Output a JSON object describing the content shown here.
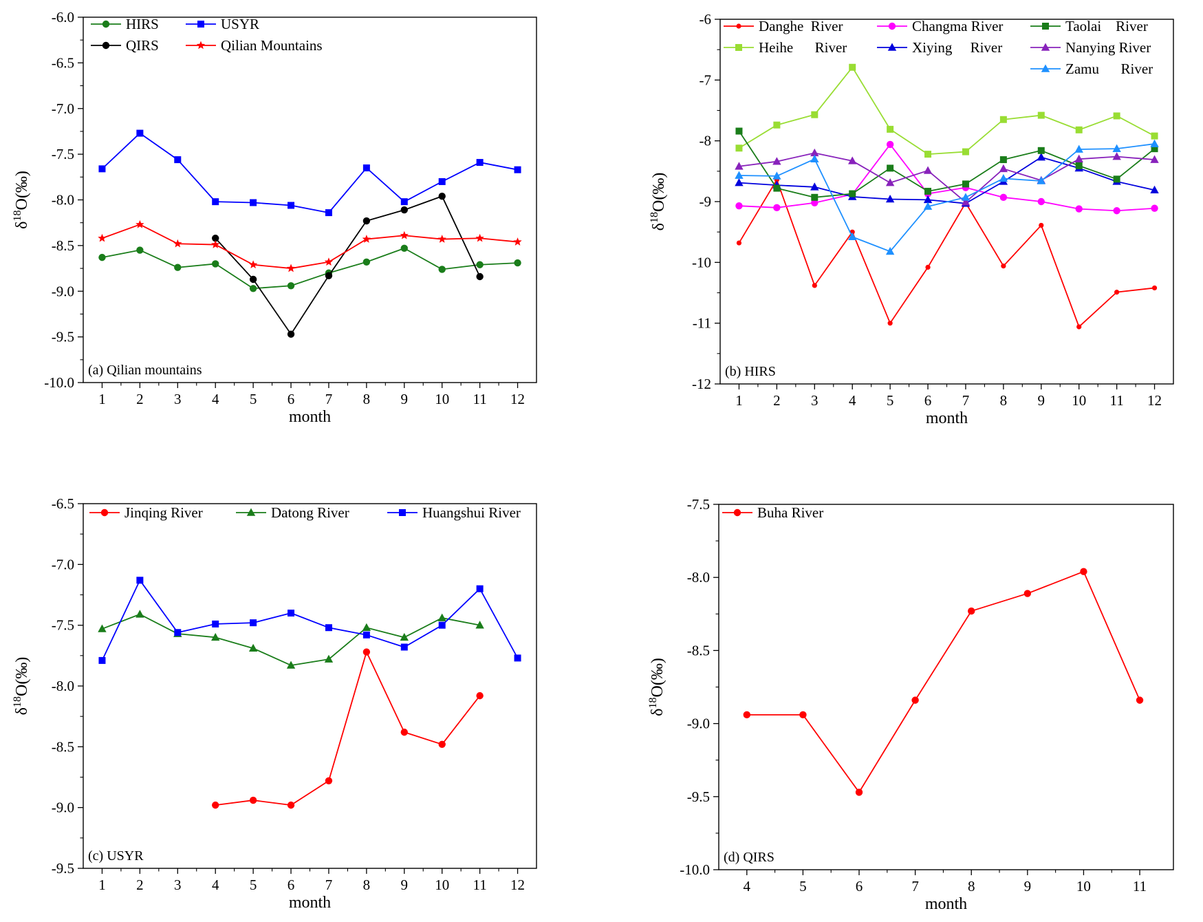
{
  "figure": {
    "panels": [
      "a",
      "b",
      "c",
      "d"
    ]
  },
  "chart_data": [
    {
      "id": "a",
      "type": "line",
      "panel_label": "(a) Qilian mountains",
      "xlabel": "month",
      "ylabel": "δ18O(‰)",
      "xlim": [
        0.5,
        12.5
      ],
      "ylim": [
        -10.0,
        -6.0
      ],
      "xticks": [
        1,
        2,
        3,
        4,
        5,
        6,
        7,
        8,
        9,
        10,
        11,
        12
      ],
      "yticks": [
        -10.0,
        -9.5,
        -9.0,
        -8.5,
        -8.0,
        -7.5,
        -7.0,
        -6.5,
        -6.0
      ],
      "ytick_decimals": 1,
      "legend_columns": 2,
      "series": [
        {
          "name": "HIRS",
          "color": "#1a7d1a",
          "marker": "circle",
          "points": [
            [
              1,
              -8.63
            ],
            [
              2,
              -8.55
            ],
            [
              3,
              -8.74
            ],
            [
              4,
              -8.7
            ],
            [
              5,
              -8.97
            ],
            [
              6,
              -8.94
            ],
            [
              7,
              -8.8
            ],
            [
              8,
              -8.68
            ],
            [
              9,
              -8.53
            ],
            [
              10,
              -8.76
            ],
            [
              11,
              -8.71
            ],
            [
              12,
              -8.69
            ]
          ]
        },
        {
          "name": "USYR",
          "color": "#0000ff",
          "marker": "square",
          "points": [
            [
              1,
              -7.66
            ],
            [
              2,
              -7.27
            ],
            [
              3,
              -7.56
            ],
            [
              4,
              -8.02
            ],
            [
              5,
              -8.03
            ],
            [
              6,
              -8.06
            ],
            [
              7,
              -8.14
            ],
            [
              8,
              -7.65
            ],
            [
              9,
              -8.02
            ],
            [
              10,
              -7.8
            ],
            [
              11,
              -7.59
            ],
            [
              12,
              -7.67
            ]
          ]
        },
        {
          "name": "QIRS",
          "color": "#000000",
          "marker": "circle",
          "points": [
            [
              4,
              -8.42
            ],
            [
              5,
              -8.87
            ],
            [
              6,
              -9.47
            ],
            [
              7,
              -8.83
            ],
            [
              8,
              -8.23
            ],
            [
              9,
              -8.11
            ],
            [
              10,
              -7.96
            ],
            [
              11,
              -8.84
            ]
          ]
        },
        {
          "name": "Qilian Mountains",
          "color": "#ff0000",
          "marker": "star",
          "points": [
            [
              1,
              -8.42
            ],
            [
              2,
              -8.27
            ],
            [
              3,
              -8.48
            ],
            [
              4,
              -8.49
            ],
            [
              5,
              -8.71
            ],
            [
              6,
              -8.75
            ],
            [
              7,
              -8.68
            ],
            [
              8,
              -8.43
            ],
            [
              9,
              -8.39
            ],
            [
              10,
              -8.43
            ],
            [
              11,
              -8.42
            ],
            [
              12,
              -8.46
            ]
          ]
        }
      ]
    },
    {
      "id": "b",
      "type": "line",
      "panel_label": "(b) HIRS",
      "xlabel": "month",
      "ylabel": "δ18O(‰)",
      "xlim": [
        0.5,
        12.5
      ],
      "ylim": [
        -12,
        -6
      ],
      "xticks": [
        1,
        2,
        3,
        4,
        5,
        6,
        7,
        8,
        9,
        10,
        11,
        12
      ],
      "yticks": [
        -12,
        -11,
        -10,
        -9,
        -8,
        -7,
        -6
      ],
      "ytick_decimals": 0,
      "legend_columns": 3,
      "series": [
        {
          "name": "Danghe  River",
          "color": "#ff0000",
          "marker": "smallcircle",
          "points": [
            [
              1,
              -9.68
            ],
            [
              2,
              -8.64
            ],
            [
              3,
              -10.38
            ],
            [
              4,
              -9.5
            ],
            [
              5,
              -11.0
            ],
            [
              6,
              -10.08
            ],
            [
              7,
              -9.02
            ],
            [
              8,
              -10.06
            ],
            [
              9,
              -9.39
            ],
            [
              10,
              -11.06
            ],
            [
              11,
              -10.49
            ],
            [
              12,
              -10.42
            ]
          ]
        },
        {
          "name": "Heihe      River",
          "color": "#99dd33",
          "marker": "square",
          "points": [
            [
              1,
              -8.12
            ],
            [
              2,
              -7.74
            ],
            [
              3,
              -7.57
            ],
            [
              4,
              -6.79
            ],
            [
              5,
              -7.81
            ],
            [
              6,
              -8.22
            ],
            [
              7,
              -8.18
            ],
            [
              8,
              -7.65
            ],
            [
              9,
              -7.58
            ],
            [
              10,
              -7.82
            ],
            [
              11,
              -7.59
            ],
            [
              12,
              -7.92
            ]
          ]
        },
        {
          "name": "Changma River",
          "color": "#ff00ff",
          "marker": "circle",
          "points": [
            [
              1,
              -9.07
            ],
            [
              2,
              -9.1
            ],
            [
              3,
              -9.02
            ],
            [
              4,
              -8.88
            ],
            [
              5,
              -8.06
            ],
            [
              6,
              -8.87
            ],
            [
              7,
              -8.77
            ],
            [
              8,
              -8.93
            ],
            [
              9,
              -9.0
            ],
            [
              10,
              -9.12
            ],
            [
              11,
              -9.15
            ],
            [
              12,
              -9.11
            ]
          ]
        },
        {
          "name": "Xiying     River",
          "color": "#0000dd",
          "marker": "triangle",
          "points": [
            [
              1,
              -8.69
            ],
            [
              2,
              -8.73
            ],
            [
              3,
              -8.76
            ],
            [
              4,
              -8.92
            ],
            [
              5,
              -8.96
            ],
            [
              6,
              -8.97
            ],
            [
              7,
              -9.03
            ],
            [
              8,
              -8.67
            ],
            [
              9,
              -8.27
            ],
            [
              10,
              -8.45
            ],
            [
              11,
              -8.67
            ],
            [
              12,
              -8.81
            ]
          ]
        },
        {
          "name": "Taolai    River",
          "color": "#1a7d1a",
          "marker": "square",
          "points": [
            [
              1,
              -7.84
            ],
            [
              2,
              -8.78
            ],
            [
              3,
              -8.93
            ],
            [
              4,
              -8.87
            ],
            [
              5,
              -8.45
            ],
            [
              6,
              -8.83
            ],
            [
              7,
              -8.71
            ],
            [
              8,
              -8.31
            ],
            [
              9,
              -8.16
            ],
            [
              10,
              -8.41
            ],
            [
              11,
              -8.63
            ],
            [
              12,
              -8.13
            ]
          ]
        },
        {
          "name": "Nanying River",
          "color": "#8822bb",
          "marker": "triangle",
          "points": [
            [
              1,
              -8.42
            ],
            [
              2,
              -8.34
            ],
            [
              3,
              -8.2
            ],
            [
              4,
              -8.33
            ],
            [
              5,
              -8.69
            ],
            [
              6,
              -8.49
            ],
            [
              7,
              -9.01
            ],
            [
              8,
              -8.46
            ],
            [
              9,
              -8.65
            ],
            [
              10,
              -8.3
            ],
            [
              11,
              -8.26
            ],
            [
              12,
              -8.31
            ]
          ]
        },
        {
          "name": "Zamu      River",
          "color": "#1e90ff",
          "marker": "triangle",
          "points": [
            [
              1,
              -8.57
            ],
            [
              2,
              -8.58
            ],
            [
              3,
              -8.3
            ],
            [
              4,
              -9.58
            ],
            [
              5,
              -9.82
            ],
            [
              6,
              -9.08
            ],
            [
              7,
              -8.93
            ],
            [
              8,
              -8.62
            ],
            [
              9,
              -8.66
            ],
            [
              10,
              -8.14
            ],
            [
              11,
              -8.13
            ],
            [
              12,
              -8.05
            ]
          ]
        }
      ]
    },
    {
      "id": "c",
      "type": "line",
      "panel_label": "(c) USYR",
      "xlabel": "month",
      "ylabel": "δ18O(‰)",
      "xlim": [
        0.5,
        12.5
      ],
      "ylim": [
        -9.5,
        -6.5
      ],
      "xticks": [
        1,
        2,
        3,
        4,
        5,
        6,
        7,
        8,
        9,
        10,
        11,
        12
      ],
      "yticks": [
        -9.5,
        -9.0,
        -8.5,
        -8.0,
        -7.5,
        -7.0,
        -6.5
      ],
      "ytick_decimals": 1,
      "legend_columns": 3,
      "series": [
        {
          "name": "Jinqing River",
          "color": "#ff0000",
          "marker": "circle",
          "points": [
            [
              4,
              -8.98
            ],
            [
              5,
              -8.94
            ],
            [
              6,
              -8.98
            ],
            [
              7,
              -8.78
            ],
            [
              8,
              -7.72
            ],
            [
              9,
              -8.38
            ],
            [
              10,
              -8.48
            ],
            [
              11,
              -8.08
            ]
          ]
        },
        {
          "name": "Datong River",
          "color": "#1a7d1a",
          "marker": "triangle",
          "points": [
            [
              1,
              -7.53
            ],
            [
              2,
              -7.41
            ],
            [
              3,
              -7.57
            ],
            [
              4,
              -7.6
            ],
            [
              5,
              -7.69
            ],
            [
              6,
              -7.83
            ],
            [
              7,
              -7.78
            ],
            [
              8,
              -7.52
            ],
            [
              9,
              -7.6
            ],
            [
              10,
              -7.44
            ],
            [
              11,
              -7.5
            ]
          ]
        },
        {
          "name": "Huangshui River",
          "color": "#0000ff",
          "marker": "square",
          "points": [
            [
              1,
              -7.79
            ],
            [
              2,
              -7.13
            ],
            [
              3,
              -7.56
            ],
            [
              4,
              -7.49
            ],
            [
              5,
              -7.48
            ],
            [
              6,
              -7.4
            ],
            [
              7,
              -7.52
            ],
            [
              8,
              -7.58
            ],
            [
              9,
              -7.68
            ],
            [
              10,
              -7.5
            ],
            [
              11,
              -7.2
            ],
            [
              12,
              -7.77
            ]
          ]
        }
      ]
    },
    {
      "id": "d",
      "type": "line",
      "panel_label": "(d)  QIRS",
      "xlabel": "month",
      "ylabel": "δ18O(‰)",
      "xlim": [
        3.5,
        11.6
      ],
      "ylim": [
        -10.0,
        -7.5
      ],
      "xticks": [
        4,
        5,
        6,
        7,
        8,
        9,
        10,
        11
      ],
      "yticks": [
        -10.0,
        -9.5,
        -9.0,
        -8.5,
        -8.0,
        -7.5
      ],
      "ytick_decimals": 1,
      "legend_columns": 1,
      "series": [
        {
          "name": "Buha River",
          "color": "#ff0000",
          "marker": "circle",
          "points": [
            [
              4,
              -8.94
            ],
            [
              5,
              -8.94
            ],
            [
              6,
              -9.47
            ],
            [
              7,
              -8.84
            ],
            [
              8,
              -8.23
            ],
            [
              9,
              -8.11
            ],
            [
              10,
              -7.96
            ],
            [
              11,
              -8.84
            ]
          ]
        }
      ]
    }
  ]
}
